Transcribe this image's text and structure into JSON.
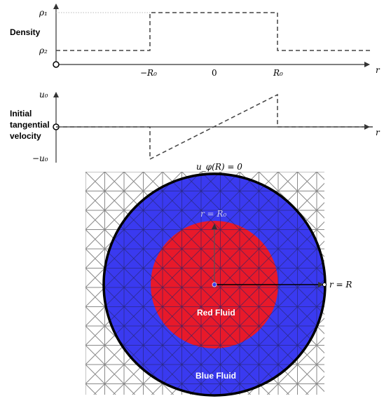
{
  "top_plot": {
    "ylabel": "Density",
    "rho1": "ρ₁",
    "rho2": "ρ₂",
    "x_axis_label": "r",
    "tick_neg_R0": "−R₀",
    "tick_zero": "0",
    "tick_pos_R0": "R₀"
  },
  "mid_plot": {
    "ylabel_line1": "Initial",
    "ylabel_line2": "tangential",
    "ylabel_line3": "velocity",
    "u0": "u₀",
    "neg_u0": "−u₀",
    "x_axis_label": "r"
  },
  "disk": {
    "top_label": "u_φ(R) = 0",
    "inner_radius_label": "r = R₀",
    "outer_radius_label": "r = R",
    "inner_fluid": "Red Fluid",
    "outer_fluid": "Blue Fluid"
  },
  "colors": {
    "red_fluid": "#e8192a",
    "blue_fluid": "#3a3af0",
    "boundary": "#000000",
    "mesh": "#8a8a8a"
  }
}
